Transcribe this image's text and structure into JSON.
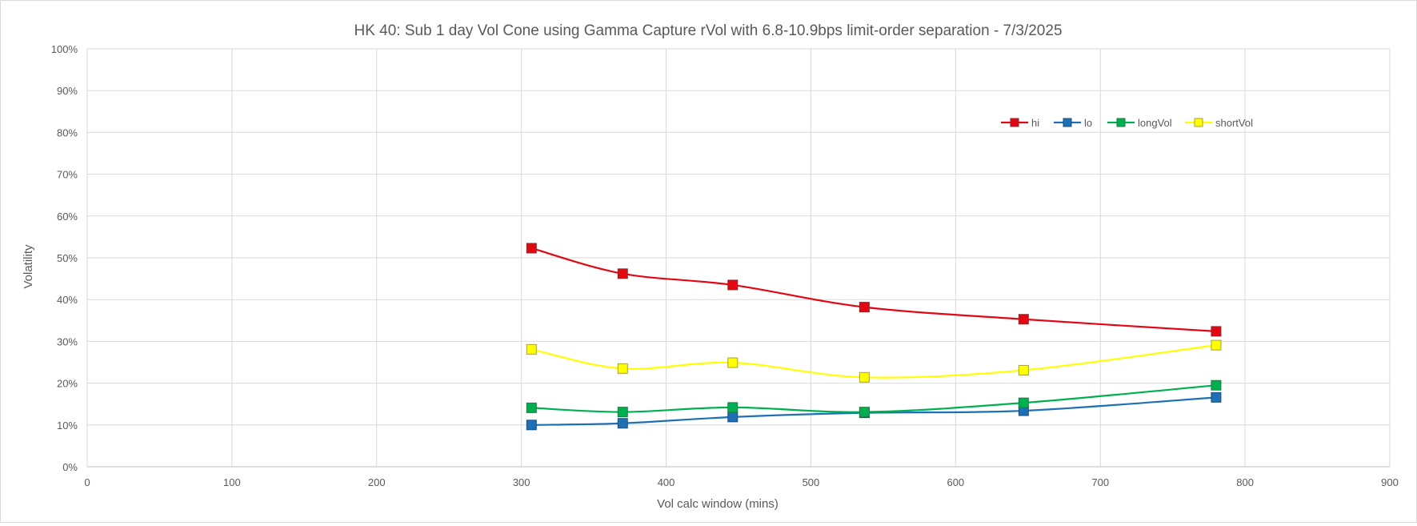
{
  "chart_data": {
    "type": "line",
    "title": "HK 40: Sub 1 day Vol Cone using Gamma Capture rVol with 6.8-10.9bps limit-order separation - 7/3/2025",
    "xlabel": "Vol calc window (mins)",
    "ylabel": "Volatility",
    "xlim": [
      0,
      900
    ],
    "ylim": [
      0,
      1
    ],
    "x_ticks": [
      0,
      100,
      200,
      300,
      400,
      500,
      600,
      700,
      800,
      900
    ],
    "x_tick_labels": [
      "0",
      "100",
      "200",
      "300",
      "400",
      "500",
      "600",
      "700",
      "800",
      "900"
    ],
    "y_ticks": [
      0,
      0.1,
      0.2,
      0.3,
      0.4,
      0.5,
      0.6,
      0.7,
      0.8,
      0.9,
      1.0
    ],
    "y_tick_labels": [
      "0%",
      "10%",
      "20%",
      "30%",
      "40%",
      "50%",
      "60%",
      "70%",
      "80%",
      "90%",
      "100%"
    ],
    "grid": true,
    "legend_position": "top-right",
    "x": [
      307,
      370,
      446,
      537,
      647,
      780
    ],
    "series": [
      {
        "name": "hi",
        "color": "#e30613",
        "marker_color": "#e30613",
        "marker_stroke": "#8b2b2b",
        "values": [
          0.523,
          0.462,
          0.435,
          0.382,
          0.353,
          0.324
        ]
      },
      {
        "name": "lo",
        "color": "#1f6fb4",
        "marker_color": "#1f6fb4",
        "marker_stroke": "#1a4f80",
        "values": [
          0.1,
          0.104,
          0.119,
          0.129,
          0.134,
          0.166
        ]
      },
      {
        "name": "longVol",
        "color": "#00b050",
        "marker_color": "#00b050",
        "marker_stroke": "#1f7a3f",
        "values": [
          0.141,
          0.131,
          0.142,
          0.131,
          0.153,
          0.195
        ]
      },
      {
        "name": "shortVol",
        "color": "#ffff00",
        "marker_color": "#ffff00",
        "marker_stroke": "#a8a032",
        "values": [
          0.281,
          0.235,
          0.249,
          0.214,
          0.231,
          0.291
        ]
      }
    ]
  }
}
